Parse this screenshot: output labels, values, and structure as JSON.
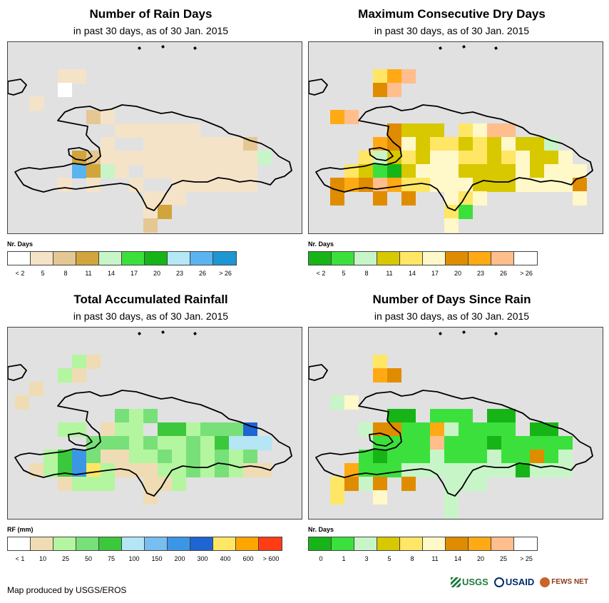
{
  "panels": [
    {
      "title": "Number of Rain Days",
      "subtitle": "in past 30 days, as of 30 Jan. 2015",
      "legend_title": "Nr. Days",
      "legend_colors": [
        "#ffffff",
        "#f5e3c8",
        "#e4c793",
        "#d1a53c",
        "#c8f5c8",
        "#3ce03c",
        "#17b417",
        "#b4e8f5",
        "#5ab4f0",
        "#1e96d2"
      ],
      "legend_labels": [
        "< 2",
        "5",
        "8",
        "11",
        "14",
        "17",
        "20",
        "23",
        "26",
        "> 26"
      ]
    },
    {
      "title": "Maximum Consecutive Dry Days",
      "subtitle": "in past 30 days, as of 30 Jan. 2015",
      "legend_title": "Nr. Days",
      "legend_colors": [
        "#17b417",
        "#3ce03c",
        "#c8f5c8",
        "#d7c800",
        "#ffe664",
        "#fff8c8",
        "#e08c00",
        "#ffaa14",
        "#ffbe8c",
        "#ffffff"
      ],
      "legend_labels": [
        "< 2",
        "5",
        "8",
        "11",
        "14",
        "17",
        "20",
        "23",
        "26",
        "> 26"
      ]
    },
    {
      "title": "Total Accumulated Rainfall",
      "subtitle": "in past 30 days, as of 30 Jan. 2015",
      "legend_title": "RF (mm)",
      "legend_colors": [
        "#ffffff",
        "#f0dcb4",
        "#b4f5a0",
        "#78e078",
        "#3cc83c",
        "#b4e6f5",
        "#78bef0",
        "#3c96e6",
        "#1e64d2",
        "#ffe664",
        "#ffa500",
        "#ff3c14"
      ],
      "legend_labels": [
        "< 1",
        "10",
        "25",
        "50",
        "75",
        "100",
        "150",
        "200",
        "300",
        "400",
        "600",
        "> 600"
      ]
    },
    {
      "title": "Number of Days Since Rain",
      "subtitle": "in past 30 days, as of 30 Jan. 2015",
      "legend_title": "Nr. Days",
      "legend_colors": [
        "#17b417",
        "#3ce03c",
        "#c8f5c8",
        "#d7c800",
        "#ffe664",
        "#fff8c8",
        "#e08c00",
        "#ffaa14",
        "#ffbe8c",
        "#ffffff"
      ],
      "legend_labels": [
        "0",
        "1",
        "3",
        "5",
        "8",
        "11",
        "14",
        "20",
        "25",
        "> 25"
      ]
    }
  ],
  "footer": "Map produced by USGS/EROS",
  "logos": [
    "USGS",
    "USAID",
    "FEWS NET"
  ]
}
